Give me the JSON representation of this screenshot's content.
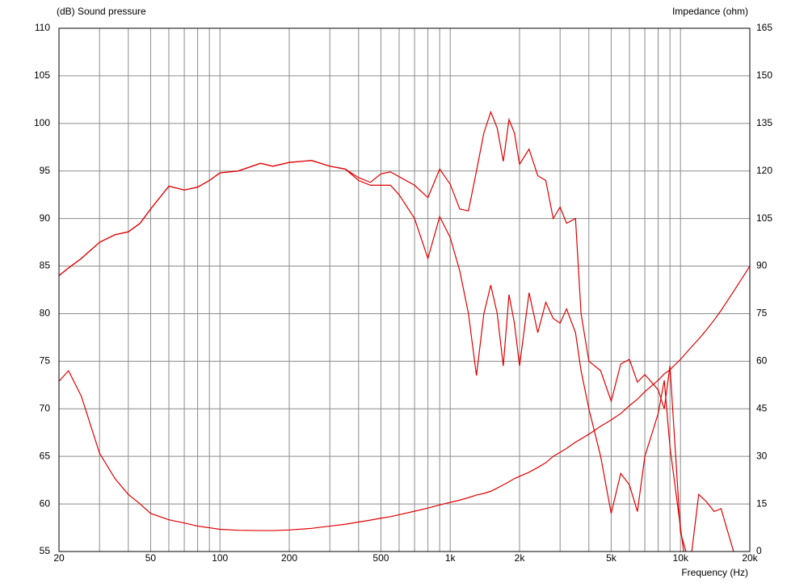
{
  "chart_data": {
    "type": "line",
    "y_label": "(dB)  Sound pressure",
    "y2_label": "Impedance  (ohm)",
    "x_label": "Frequency  (Hz)",
    "xscale": "log",
    "xlim": [
      20,
      20000
    ],
    "xticks": [
      20,
      50,
      100,
      200,
      500,
      {
        "value": 1000,
        "label": "1k"
      },
      {
        "value": 2000,
        "label": "2k"
      },
      {
        "value": 5000,
        "label": "5k"
      },
      {
        "value": 10000,
        "label": "10k"
      },
      {
        "value": 20000,
        "label": "20k"
      }
    ],
    "xgrid": [
      30,
      40,
      60,
      70,
      80,
      90,
      300,
      400,
      600,
      700,
      800,
      900,
      3000,
      4000,
      6000,
      7000,
      8000,
      9000
    ],
    "ylim": [
      55,
      110
    ],
    "yticks": [
      55,
      60,
      65,
      70,
      75,
      80,
      85,
      90,
      95,
      100,
      105,
      110
    ],
    "y2lim": [
      0,
      165
    ],
    "y2ticks": [
      0,
      15,
      30,
      45,
      60,
      75,
      90,
      105,
      120,
      135,
      150,
      165
    ],
    "grid": true,
    "x": [
      20,
      22,
      25,
      30,
      35,
      40,
      45,
      50,
      60,
      70,
      80,
      90,
      100,
      120,
      150,
      170,
      200,
      250,
      300,
      350,
      400,
      450,
      500,
      550,
      600,
      700,
      800,
      900,
      1000,
      1100,
      1200,
      1300,
      1400,
      1500,
      1600,
      1700,
      1800,
      1900,
      2000,
      2200,
      2400,
      2600,
      2800,
      3000,
      3200,
      3500,
      3700,
      4000,
      4500,
      5000,
      5500,
      6000,
      6500,
      7000,
      8000,
      8500,
      9000,
      10000,
      11000,
      12000,
      13000,
      14000,
      15000,
      17000,
      20000
    ],
    "series": [
      {
        "color": "#e00000",
        "values": [
          84,
          84.8,
          85.8,
          87.5,
          88.3,
          88.6,
          89.5,
          91,
          93.4,
          93,
          93.3,
          94,
          94.8,
          95,
          95.8,
          95.5,
          95.9,
          96.1,
          95.5,
          95.2,
          94.3,
          93.8,
          94.7,
          94.9,
          94.4,
          93.5,
          92.2,
          95.2,
          93.6,
          91,
          90.8,
          95,
          99,
          101.2,
          99.5,
          96,
          100.4,
          99,
          95.7,
          97.3,
          94.5,
          94,
          90,
          91.2,
          89.5,
          90,
          80,
          75,
          74,
          70.8,
          74.7,
          75.2,
          72.8,
          73.6,
          72,
          70,
          74.5,
          57,
          53.5,
          61,
          60.2,
          59.2,
          59.5,
          55,
          null
        ]
      },
      {
        "color": "#e00000",
        "values": [
          84,
          84.8,
          85.8,
          87.5,
          88.3,
          88.6,
          89.5,
          91,
          93.4,
          93,
          93.3,
          94,
          94.8,
          95,
          95.8,
          95.5,
          95.9,
          96.1,
          95.5,
          95.2,
          94,
          93.5,
          93.5,
          93.5,
          92.5,
          90,
          85.8,
          90.2,
          88,
          84.5,
          80,
          73.5,
          80,
          83,
          80,
          74.5,
          82,
          79,
          74.5,
          82.2,
          78,
          81.2,
          79.5,
          79,
          80.5,
          78,
          74,
          70,
          65,
          59,
          63.2,
          62,
          59.2,
          65,
          69.5,
          73,
          66,
          57.5,
          50,
          null,
          null,
          null,
          null,
          null,
          null
        ]
      },
      {
        "color": "#e00000",
        "axis": "y2",
        "values": [
          53.7,
          57,
          49,
          31,
          23,
          18,
          15,
          12,
          10,
          9,
          8,
          7.5,
          7,
          6.7,
          6.6,
          6.6,
          6.8,
          7.3,
          8,
          8.6,
          9.3,
          9.9,
          10.5,
          11,
          11.6,
          12.7,
          13.7,
          14.7,
          15.5,
          16.2,
          17,
          17.8,
          18.3,
          19,
          20,
          21,
          22,
          23,
          23.7,
          25,
          26.5,
          28,
          30,
          31.3,
          32.5,
          34.5,
          35.5,
          37,
          39.5,
          41.5,
          43.5,
          46,
          48,
          50.4,
          54,
          56,
          57.3,
          60.6,
          64,
          67,
          70,
          73,
          76,
          82,
          90
        ]
      }
    ]
  }
}
